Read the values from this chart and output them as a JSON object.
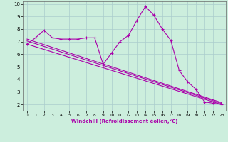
{
  "xlabel": "Windchill (Refroidissement éolien,°C)",
  "background_color": "#cceedd",
  "line_color": "#aa00aa",
  "grid_color": "#aacccc",
  "xlim": [
    -0.5,
    23.5
  ],
  "ylim": [
    1.5,
    10.2
  ],
  "yticks": [
    2,
    3,
    4,
    5,
    6,
    7,
    8,
    9,
    10
  ],
  "xticks": [
    0,
    1,
    2,
    3,
    4,
    5,
    6,
    7,
    8,
    9,
    10,
    11,
    12,
    13,
    14,
    15,
    16,
    17,
    18,
    19,
    20,
    21,
    22,
    23
  ],
  "line1_x": [
    0,
    1,
    2,
    3,
    4,
    5,
    6,
    7,
    8,
    9,
    10,
    11,
    12,
    13,
    14,
    15,
    16,
    17,
    18,
    19,
    20,
    21,
    22,
    23
  ],
  "line1_y": [
    6.8,
    7.3,
    7.9,
    7.3,
    7.2,
    7.2,
    7.2,
    7.3,
    7.3,
    5.2,
    6.1,
    7.0,
    7.5,
    8.7,
    9.8,
    9.1,
    8.0,
    7.1,
    4.7,
    3.8,
    3.2,
    2.2,
    2.1,
    2.0
  ],
  "trend1_x": [
    0,
    23
  ],
  "trend1_y": [
    6.8,
    2.0
  ],
  "trend2_x": [
    0,
    23
  ],
  "trend2_y": [
    7.2,
    2.15
  ],
  "trend3_x": [
    0,
    23
  ],
  "trend3_y": [
    7.05,
    2.08
  ]
}
